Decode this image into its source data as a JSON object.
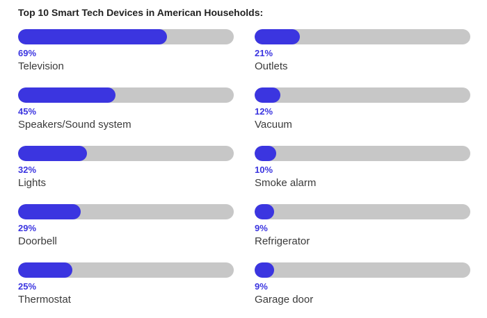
{
  "chart_data": {
    "type": "bar",
    "title": "Top 10 Smart Tech Devices in American Households:",
    "max": 100,
    "unit": "%",
    "categories": [
      "Television",
      "Speakers/Sound system",
      "Lights",
      "Doorbell",
      "Thermostat",
      "Outlets",
      "Vacuum",
      "Smoke alarm",
      "Refrigerator",
      "Garage door"
    ],
    "values": [
      69,
      45,
      32,
      29,
      25,
      21,
      12,
      10,
      9,
      9
    ],
    "value_labels": [
      "69%",
      "45%",
      "32%",
      "29%",
      "25%",
      "21%",
      "12%",
      "10%",
      "9%",
      "9%"
    ],
    "colors": {
      "fill": "#3b35e0",
      "track": "#c7c7c7",
      "value_text": "#3b35e0",
      "label_text": "#3a3a3a"
    }
  }
}
